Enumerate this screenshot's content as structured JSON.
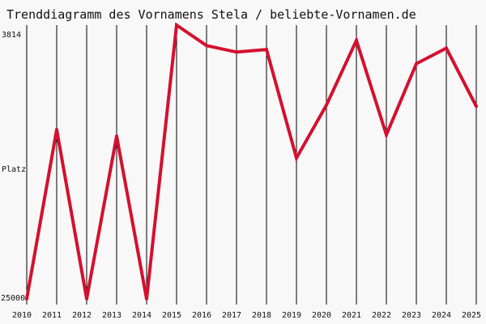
{
  "chart_data": {
    "type": "line",
    "title": "Trenddiagramm des Vornamens Stela / beliebte-Vornamen.de",
    "xlabel": "",
    "ylabel": "Platz",
    "y_tick_top": "3814",
    "y_tick_bottom": "25000",
    "ylim": [
      3814,
      25000
    ],
    "y_inverted": true,
    "grid": "vertical",
    "x": [
      "2010",
      "2011",
      "2012",
      "2013",
      "2014",
      "2015",
      "2016",
      "2017",
      "2018",
      "2019",
      "2020",
      "2021",
      "2022",
      "2023",
      "2024",
      "2025"
    ],
    "series": [
      {
        "values": [
          25000,
          11900,
          25000,
          12400,
          25000,
          3814,
          5400,
          5900,
          5700,
          14100,
          10000,
          5000,
          12300,
          6800,
          5600,
          10100
        ]
      }
    ]
  },
  "colors": {
    "line": "#d4102f",
    "background": "#f8f8f8",
    "grid": "#000000",
    "text": "#111111"
  }
}
